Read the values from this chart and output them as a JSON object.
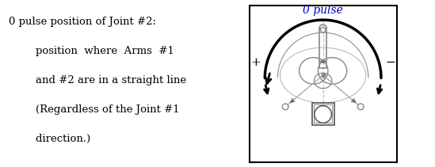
{
  "title_line": "0 pulse position of Joint #2:",
  "body_lines": [
    "        position  where  Arms  #1",
    "        and #2 are in a straight line",
    "        (Regardless of the Joint #1",
    "        direction.)"
  ],
  "diagram_title": "0 pulse",
  "diagram_title_color": "#0000cc",
  "plus_label": "+",
  "minus_label": "−",
  "bg_color": "#ffffff",
  "border_color": "#000000",
  "arc_color": "#000000",
  "arm_color": "#888888",
  "gray_color": "#aaaaaa",
  "text_color": "#000000",
  "text_fontsize": 9.5,
  "body_fontsize": 9.5
}
